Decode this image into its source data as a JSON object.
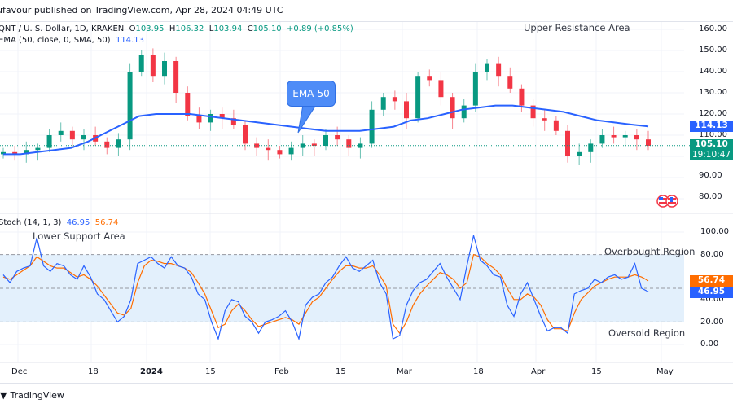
{
  "header": {
    "published_text": "ufavour published on TradingView.com, Apr 28, 2024 04:49 UTC"
  },
  "main_pane": {
    "symbol": "QNT / U. S. Dollar, 1D, KRAKEN",
    "open_label": "O",
    "open": "103.95",
    "high_label": "H",
    "high": "106.32",
    "low_label": "L",
    "low": "103.94",
    "close_label": "C",
    "close": "105.10",
    "change": "+0.89 (+0.85%)",
    "ema_label": "EMA (50, close, 0, SMA, 50)",
    "ema_value": "114.13",
    "price_axis": [
      "160.00",
      "150.00",
      "140.00",
      "130.00",
      "120.00",
      "110.00",
      "90.00",
      "80.00"
    ],
    "ema_tag": "114.13",
    "price_tag": "105.10",
    "countdown_tag": "19:10:47",
    "annotation_resistance": "Upper Resistance Area",
    "callout_ema": "EMA-50"
  },
  "stoch_pane": {
    "label": "Stoch (14, 1, 3)",
    "k_value": "46.95",
    "d_value": "56.74",
    "axis": [
      "100.00",
      "80.00",
      "40.00",
      "20.00",
      "0.00"
    ],
    "k_tag": "46.95",
    "d_tag": "56.74",
    "annotation_support": "Lower Support Area",
    "annotation_overbought": "Overbought Region",
    "annotation_oversold": "Oversold Region"
  },
  "time_axis": [
    "Dec",
    "18",
    "2024",
    "15",
    "Feb",
    "15",
    "Mar",
    "18",
    "Apr",
    "15",
    "May"
  ],
  "footer": {
    "brand": "TradingView"
  },
  "colors": {
    "up": "#089981",
    "down": "#f23645",
    "ema": "#2962ff",
    "stoch_k": "#2962ff",
    "stoch_d": "#ff6d00",
    "band_fill": "#e3f0fc"
  },
  "chart_data": [
    {
      "type": "candlestick",
      "title": "QNT / U. S. Dollar, 1D, KRAKEN",
      "x_range": [
        "2023-11-27",
        "2024-04-28"
      ],
      "xticks": [
        "Dec",
        "18",
        "2024",
        "15",
        "Feb",
        "15",
        "Mar",
        "18",
        "Apr",
        "15",
        "May"
      ],
      "ylim": [
        75,
        163
      ],
      "yticks": [
        80,
        90,
        100,
        110,
        120,
        130,
        140,
        150,
        160
      ],
      "last": {
        "open": 103.95,
        "high": 106.32,
        "low": 103.94,
        "close": 105.1,
        "change": 0.89,
        "change_pct": 0.85
      },
      "series": [
        {
          "name": "EMA (50, close, 0, SMA, 50)",
          "type": "line",
          "last": 114.13,
          "approx_values": [
            101,
            101,
            102,
            103,
            104,
            107,
            111,
            115,
            119,
            120,
            120,
            120,
            119,
            118,
            117,
            116,
            115,
            114,
            113,
            112,
            112,
            112,
            113,
            114,
            117,
            118,
            120,
            122,
            123,
            124,
            124,
            123,
            122,
            121,
            119,
            117,
            116,
            115,
            114.13
          ]
        }
      ],
      "approx_closes": [
        102,
        101,
        103,
        104,
        110,
        112,
        108,
        110,
        107,
        104,
        108,
        140,
        148,
        138,
        145,
        130,
        119,
        116,
        120,
        118,
        115,
        106,
        104,
        103,
        101,
        104,
        106,
        105,
        110,
        108,
        104,
        106,
        122,
        128,
        126,
        118,
        138,
        136,
        128,
        118,
        124,
        140,
        144,
        138,
        132,
        124,
        118,
        117,
        112,
        100,
        102,
        106,
        110,
        109,
        110,
        108,
        105
      ]
    },
    {
      "type": "line",
      "title": "Stoch (14, 1, 3)",
      "ylim": [
        0,
        100
      ],
      "yticks": [
        0,
        20,
        40,
        60,
        80,
        100
      ],
      "bands": {
        "overbought": 80,
        "middle": 50,
        "oversold": 20
      },
      "series": [
        {
          "name": "%K",
          "last": 46.95,
          "approx_values": [
            62,
            55,
            65,
            68,
            70,
            95,
            70,
            65,
            72,
            70,
            62,
            58,
            70,
            60,
            45,
            40,
            30,
            20,
            25,
            40,
            72,
            75,
            78,
            72,
            68,
            78,
            70,
            68,
            60,
            45,
            40,
            20,
            5,
            30,
            40,
            38,
            25,
            20,
            10,
            20,
            22,
            25,
            30,
            20,
            5,
            35,
            42,
            45,
            55,
            60,
            70,
            78,
            68,
            65,
            70,
            75,
            55,
            45,
            5,
            8,
            35,
            48,
            55,
            58,
            65,
            72,
            60,
            50,
            40,
            70,
            97,
            75,
            70,
            62,
            60,
            35,
            25,
            45,
            55,
            40,
            25,
            12,
            15,
            15,
            10,
            45,
            48,
            50,
            58,
            55,
            60,
            62,
            58,
            60,
            72,
            50,
            46.95
          ]
        },
        {
          "name": "%D",
          "last": 56.74,
          "approx_values": [
            60,
            58,
            62,
            66,
            70,
            78,
            74,
            70,
            68,
            68,
            64,
            60,
            62,
            58,
            52,
            44,
            36,
            28,
            26,
            32,
            55,
            70,
            75,
            74,
            72,
            72,
            70,
            68,
            64,
            55,
            45,
            30,
            15,
            18,
            30,
            36,
            30,
            22,
            16,
            18,
            20,
            22,
            24,
            22,
            18,
            28,
            38,
            42,
            50,
            58,
            65,
            70,
            70,
            68,
            68,
            70,
            62,
            52,
            18,
            10,
            20,
            35,
            45,
            52,
            58,
            64,
            62,
            58,
            50,
            55,
            80,
            78,
            72,
            68,
            62,
            50,
            40,
            40,
            45,
            42,
            35,
            22,
            14,
            14,
            12,
            28,
            40,
            46,
            52,
            55,
            58,
            60,
            60,
            60,
            62,
            60,
            56.74
          ]
        }
      ],
      "annotations": [
        "Lower Support Area",
        "Overbought Region",
        "Oversold Region"
      ]
    }
  ]
}
